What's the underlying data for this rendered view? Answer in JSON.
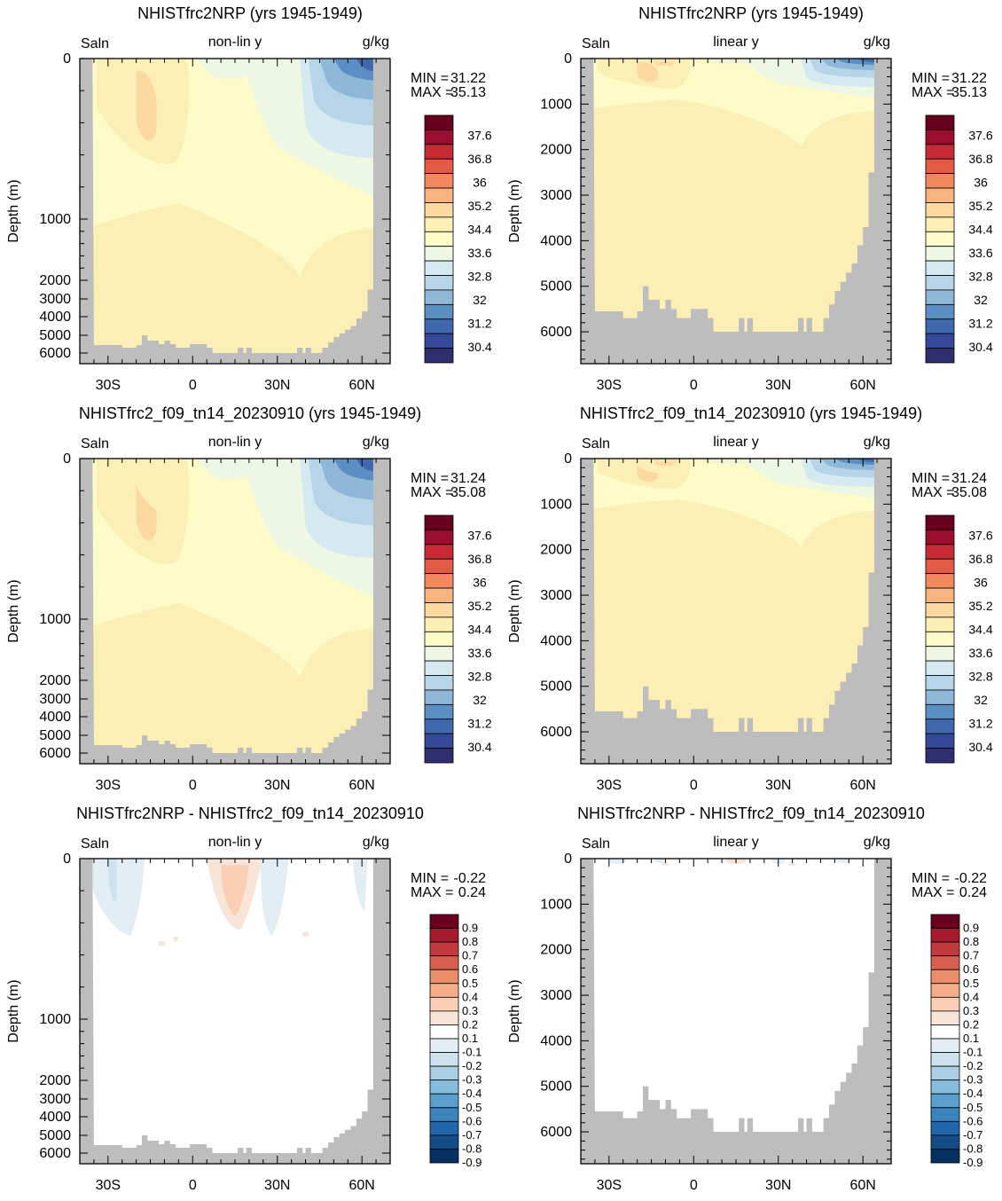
{
  "colors": {
    "land": "#bdbdbd",
    "salinity_levels": [
      "#2f2e6e",
      "#34499a",
      "#3f68ad",
      "#5b8ec3",
      "#8fb7d8",
      "#b6d5e8",
      "#d5e9f1",
      "#edf7e4",
      "#fdfcc9",
      "#fcefb6",
      "#fbd9a0",
      "#f8b47e",
      "#f3885d",
      "#e35a45",
      "#c82a35",
      "#9b0d2e",
      "#67001f"
    ],
    "diff_levels": [
      "#053061",
      "#134c87",
      "#2166ac",
      "#3a84bb",
      "#5a9ecb",
      "#87bddc",
      "#aacfe5",
      "#cde2ee",
      "#e3eef4",
      "#ffffff",
      "#f9e4d8",
      "#fbcfb5",
      "#f6ae8a",
      "#ea8d6a",
      "#d6604d",
      "#c13a3e",
      "#a81a2d",
      "#67001f"
    ]
  },
  "chart_data": [
    {
      "type": "heatmap",
      "title": "NHISTfrc2NRP (yrs 1945-1949)",
      "left_label": "Saln",
      "center_label": "non-lin y",
      "right_label": "g/kg",
      "ylabel": "Depth (m)",
      "x_ticks": [
        "30S",
        "0",
        "30N",
        "60N"
      ],
      "y_ticks": [
        "0",
        "1000",
        "2000",
        "3000",
        "4000",
        "5000",
        "6000"
      ],
      "y_scale": "non-linear",
      "ylim": [
        0,
        6700
      ],
      "xlim": [
        -40,
        70
      ],
      "min_label": "MIN =",
      "min": "31.22",
      "max_label": "MAX =",
      "max": "35.13",
      "colorbar": [
        "37.6",
        "36.8",
        "36",
        "35.2",
        "34.4",
        "33.6",
        "32.8",
        "32",
        "31.2",
        "30.4"
      ]
    },
    {
      "type": "heatmap",
      "title": "NHISTfrc2NRP (yrs 1945-1949)",
      "left_label": "Saln",
      "center_label": "linear y",
      "right_label": "g/kg",
      "ylabel": "Depth (m)",
      "x_ticks": [
        "30S",
        "0",
        "30N",
        "60N"
      ],
      "y_ticks": [
        "0",
        "1000",
        "2000",
        "3000",
        "4000",
        "5000",
        "6000"
      ],
      "y_scale": "linear",
      "ylim": [
        0,
        6700
      ],
      "xlim": [
        -40,
        70
      ],
      "min_label": "MIN =",
      "min": "31.22",
      "max_label": "MAX =",
      "max": "35.13",
      "colorbar": [
        "37.6",
        "36.8",
        "36",
        "35.2",
        "34.4",
        "33.6",
        "32.8",
        "32",
        "31.2",
        "30.4"
      ]
    },
    {
      "type": "heatmap",
      "title": "NHISTfrc2_f09_tn14_20230910 (yrs 1945-1949)",
      "left_label": "Saln",
      "center_label": "non-lin y",
      "right_label": "g/kg",
      "ylabel": "Depth (m)",
      "x_ticks": [
        "30S",
        "0",
        "30N",
        "60N"
      ],
      "y_ticks": [
        "0",
        "1000",
        "2000",
        "3000",
        "4000",
        "5000",
        "6000"
      ],
      "y_scale": "non-linear",
      "ylim": [
        0,
        6700
      ],
      "xlim": [
        -40,
        70
      ],
      "min_label": "MIN =",
      "min": "31.24",
      "max_label": "MAX =",
      "max": "35.08",
      "colorbar": [
        "37.6",
        "36.8",
        "36",
        "35.2",
        "34.4",
        "33.6",
        "32.8",
        "32",
        "31.2",
        "30.4"
      ]
    },
    {
      "type": "heatmap",
      "title": "NHISTfrc2_f09_tn14_20230910 (yrs 1945-1949)",
      "left_label": "Saln",
      "center_label": "linear y",
      "right_label": "g/kg",
      "ylabel": "Depth (m)",
      "x_ticks": [
        "30S",
        "0",
        "30N",
        "60N"
      ],
      "y_ticks": [
        "0",
        "1000",
        "2000",
        "3000",
        "4000",
        "5000",
        "6000"
      ],
      "y_scale": "linear",
      "ylim": [
        0,
        6700
      ],
      "xlim": [
        -40,
        70
      ],
      "min_label": "MIN =",
      "min": "31.24",
      "max_label": "MAX =",
      "max": "35.08",
      "colorbar": [
        "37.6",
        "36.8",
        "36",
        "35.2",
        "34.4",
        "33.6",
        "32.8",
        "32",
        "31.2",
        "30.4"
      ]
    },
    {
      "type": "heatmap",
      "title": "NHISTfrc2NRP - NHISTfrc2_f09_tn14_20230910",
      "left_label": "Saln",
      "center_label": "non-lin y",
      "right_label": "g/kg",
      "ylabel": "Depth (m)",
      "x_ticks": [
        "30S",
        "0",
        "30N",
        "60N"
      ],
      "y_ticks": [
        "0",
        "1000",
        "2000",
        "3000",
        "4000",
        "5000",
        "6000"
      ],
      "y_scale": "non-linear",
      "ylim": [
        0,
        6700
      ],
      "xlim": [
        -40,
        70
      ],
      "min_label": "MIN =",
      "min": "-0.22",
      "max_label": "MAX =",
      "max": "0.24",
      "colorbar": [
        "0.9",
        "0.8",
        "0.7",
        "0.6",
        "0.5",
        "0.4",
        "0.3",
        "0.2",
        "0.1",
        "-0.1",
        "-0.2",
        "-0.3",
        "-0.4",
        "-0.5",
        "-0.6",
        "-0.7",
        "-0.8",
        "-0.9"
      ]
    },
    {
      "type": "heatmap",
      "title": "NHISTfrc2NRP - NHISTfrc2_f09_tn14_20230910",
      "left_label": "Saln",
      "center_label": "linear y",
      "right_label": "g/kg",
      "ylabel": "Depth (m)",
      "x_ticks": [
        "30S",
        "0",
        "30N",
        "60N"
      ],
      "y_ticks": [
        "0",
        "1000",
        "2000",
        "3000",
        "4000",
        "5000",
        "6000"
      ],
      "y_scale": "linear",
      "ylim": [
        0,
        6700
      ],
      "xlim": [
        -40,
        70
      ],
      "min_label": "MIN =",
      "min": "-0.22",
      "max_label": "MAX =",
      "max": "0.24",
      "colorbar": [
        "0.9",
        "0.8",
        "0.7",
        "0.6",
        "0.5",
        "0.4",
        "0.3",
        "0.2",
        "0.1",
        "-0.1",
        "-0.2",
        "-0.3",
        "-0.4",
        "-0.5",
        "-0.6",
        "-0.7",
        "-0.8",
        "-0.9"
      ]
    }
  ]
}
